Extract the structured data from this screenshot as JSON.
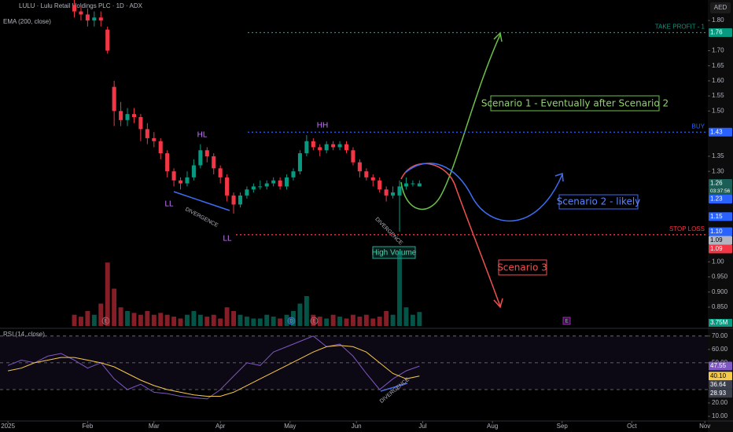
{
  "chart_data": [
    {
      "type": "candlestick",
      "title": "LULU · Lulu Retail Holdings PLC · 1D · ADX",
      "indicator": "EMA (200, close)",
      "currency": "AED",
      "x": [
        20,
        22,
        24,
        26,
        28,
        30,
        32,
        34,
        36,
        38,
        40,
        42,
        44,
        46,
        48,
        50,
        52,
        54,
        56,
        58,
        60,
        62,
        64,
        66,
        68,
        70,
        72,
        74,
        76,
        78,
        80,
        82,
        84,
        86,
        88,
        90,
        92,
        94,
        96,
        98,
        100,
        102,
        104,
        106,
        108,
        110,
        112,
        114,
        116,
        118,
        120,
        122,
        124
      ],
      "open": [
        1.85,
        1.83,
        1.82,
        1.8,
        1.81,
        1.77,
        1.58,
        1.5,
        1.47,
        1.49,
        1.48,
        1.44,
        1.41,
        1.4,
        1.36,
        1.3,
        1.27,
        1.26,
        1.28,
        1.32,
        1.37,
        1.35,
        1.31,
        1.28,
        1.22,
        1.19,
        1.22,
        1.24,
        1.25,
        1.25,
        1.26,
        1.27,
        1.25,
        1.28,
        1.3,
        1.36,
        1.4,
        1.38,
        1.37,
        1.39,
        1.38,
        1.39,
        1.37,
        1.33,
        1.3,
        1.28,
        1.27,
        1.24,
        1.22,
        1.22,
        1.25,
        1.26,
        1.25
      ],
      "high": [
        1.87,
        1.85,
        1.84,
        1.83,
        1.83,
        1.78,
        1.6,
        1.53,
        1.51,
        1.51,
        1.49,
        1.46,
        1.43,
        1.41,
        1.37,
        1.31,
        1.28,
        1.3,
        1.34,
        1.39,
        1.38,
        1.36,
        1.32,
        1.29,
        1.23,
        1.23,
        1.25,
        1.26,
        1.27,
        1.27,
        1.28,
        1.28,
        1.29,
        1.31,
        1.37,
        1.42,
        1.41,
        1.39,
        1.4,
        1.4,
        1.4,
        1.4,
        1.38,
        1.34,
        1.31,
        1.29,
        1.28,
        1.25,
        1.25,
        1.27,
        1.28,
        1.27,
        1.27
      ],
      "low": [
        1.81,
        1.8,
        1.78,
        1.78,
        1.78,
        1.69,
        1.45,
        1.45,
        1.45,
        1.46,
        1.4,
        1.39,
        1.38,
        1.34,
        1.28,
        1.25,
        1.24,
        1.25,
        1.27,
        1.31,
        1.33,
        1.29,
        1.26,
        1.2,
        1.16,
        1.18,
        1.21,
        1.23,
        1.24,
        1.24,
        1.25,
        1.24,
        1.24,
        1.27,
        1.29,
        1.35,
        1.37,
        1.35,
        1.36,
        1.37,
        1.37,
        1.36,
        1.32,
        1.28,
        1.27,
        1.25,
        1.23,
        1.2,
        1.21,
        1.1,
        1.24,
        1.25,
        1.25
      ],
      "close": [
        1.83,
        1.82,
        1.8,
        1.81,
        1.8,
        1.7,
        1.5,
        1.47,
        1.49,
        1.48,
        1.44,
        1.41,
        1.4,
        1.36,
        1.3,
        1.27,
        1.26,
        1.28,
        1.32,
        1.37,
        1.35,
        1.31,
        1.28,
        1.22,
        1.19,
        1.22,
        1.24,
        1.25,
        1.25,
        1.26,
        1.27,
        1.25,
        1.28,
        1.3,
        1.36,
        1.4,
        1.38,
        1.37,
        1.39,
        1.38,
        1.39,
        1.37,
        1.33,
        1.3,
        1.28,
        1.27,
        1.24,
        1.22,
        1.23,
        1.25,
        1.26,
        1.26,
        1.26
      ],
      "volume": [
        3,
        2.5,
        4,
        3,
        6,
        17,
        10,
        5,
        4,
        3.5,
        3,
        4,
        3,
        3.5,
        3,
        2.5,
        2,
        3,
        4,
        3,
        2.5,
        3,
        2,
        5,
        4,
        3,
        2.5,
        2,
        2,
        3,
        2.5,
        2,
        3,
        4,
        6,
        8,
        3,
        2.5,
        2,
        3,
        2.5,
        2,
        3,
        2.5,
        3,
        2,
        2.5,
        4,
        3,
        20,
        5,
        3,
        3.75
      ],
      "volume_tag": {
        "value": 3.75,
        "label": "3.75M"
      },
      "up_color": "#089981",
      "down_color": "#f23645",
      "xlim": [
        -2.4,
        210.9
      ],
      "xticks": [
        {
          "value": 0,
          "label": "2025"
        },
        {
          "value": 24,
          "label": "Feb"
        },
        {
          "value": 44,
          "label": "Mar"
        },
        {
          "value": 64,
          "label": "Apr"
        },
        {
          "value": 85,
          "label": "May"
        },
        {
          "value": 105,
          "label": "Jun"
        },
        {
          "value": 125,
          "label": "Jul"
        },
        {
          "value": 146,
          "label": "Aug"
        },
        {
          "value": 167,
          "label": "Sep"
        },
        {
          "value": 188,
          "label": "Oct"
        },
        {
          "value": 210,
          "label": "Nov"
        }
      ],
      "ylim": [
        0.7875,
        1.868
      ],
      "yticks": [
        {
          "value": 1.8,
          "label": "1.80"
        },
        {
          "value": 1.7,
          "label": "1.70"
        },
        1.65,
        {
          "value": 1.6,
          "label": "1.60"
        },
        1.55,
        {
          "value": 1.5,
          "label": "1.50"
        },
        1.35,
        {
          "value": 1.3,
          "label": "1.30"
        },
        {
          "value": 1,
          "label": "1.00"
        },
        {
          "value": 0.95,
          "label": "0.950"
        },
        {
          "value": 0.9,
          "label": "0.900"
        },
        {
          "value": 0.85,
          "label": "0.850"
        }
      ],
      "levels": [
        {
          "name": "TAKE PROFIT - 1",
          "value": 1.76,
          "color": "#089981"
        },
        {
          "name": "BUY",
          "value": 1.43,
          "color": "#2962ff"
        },
        {
          "name": "STOP LOSS",
          "value": 1.09,
          "color": "#f23645"
        }
      ],
      "price_tags": [
        {
          "value": 1.76,
          "color": "#089981"
        },
        {
          "value": 1.43,
          "color": "#2962ff"
        },
        {
          "value": 1.26,
          "color": "#1b5e56"
        },
        {
          "value": 1.23,
          "color": "#2962ff"
        },
        {
          "value": 1.15,
          "color": "#2962ff"
        },
        {
          "value": 1.1,
          "label": "1.10",
          "color": "#2962ff"
        },
        {
          "value": 1.09,
          "color": "#b2b5be"
        },
        {
          "value": 1.09,
          "color": "#f23645"
        }
      ],
      "countdown": "03:37:56",
      "annotations": {
        "hl": "HL",
        "hh": "HH",
        "ll": [
          "LL",
          "LL"
        ],
        "divergence": [
          "DIVERGENCE",
          "DIVERGENCE",
          "DIVERGENCE"
        ],
        "high_volume": "High Volume",
        "scenario_1": "Scenario 1 - Eventually after Scenario 2",
        "scenario_2": "Scenario 2 - likely",
        "scenario_3": "Scenario 3",
        "markers": [
          "E",
          "D",
          "E",
          "E"
        ]
      }
    },
    {
      "type": "line",
      "title": "RSI (14, close)",
      "x": [
        0,
        4,
        8,
        12,
        16,
        20,
        24,
        28,
        32,
        36,
        40,
        44,
        48,
        52,
        56,
        60,
        64,
        68,
        72,
        76,
        80,
        84,
        88,
        92,
        96,
        100,
        104,
        108,
        112,
        116,
        120,
        124
      ],
      "series": [
        {
          "color": "#7e57c2",
          "values": [
            48,
            52,
            50,
            55,
            57,
            52,
            46,
            50,
            38,
            30,
            34,
            28,
            27,
            25,
            24,
            23,
            30,
            40,
            50,
            48,
            58,
            62,
            66,
            70,
            62,
            64,
            55,
            42,
            30,
            38,
            44,
            47.55
          ]
        },
        {
          "color": "#f7c948",
          "values": [
            44,
            46,
            50,
            52,
            54,
            54,
            52,
            50,
            47,
            42,
            37,
            33,
            30,
            28,
            26,
            25,
            25,
            28,
            33,
            38,
            43,
            48,
            53,
            58,
            62,
            63,
            62,
            58,
            50,
            42,
            38,
            40.1
          ]
        }
      ],
      "xlim": [
        -2.4,
        210.9
      ],
      "ylim": [
        7.1,
        73.4
      ],
      "yticks": [
        {
          "value": 70,
          "label": "70.00"
        },
        {
          "value": 60,
          "label": "60.00"
        },
        {
          "value": 50,
          "label": "50.00"
        },
        {
          "value": 20,
          "label": "20.00"
        },
        {
          "value": 10,
          "label": "10.00"
        }
      ],
      "levels": [
        70,
        50,
        30
      ],
      "price_tags": [
        {
          "value": 47.55,
          "color": "#7e57c2"
        },
        {
          "value": 40.1,
          "label": "40.10",
          "color": "#f7c948"
        },
        {
          "value": 36.64,
          "color": "#3a3f4b"
        },
        {
          "value": 28.93,
          "color": "#3a3f4b"
        }
      ]
    }
  ]
}
